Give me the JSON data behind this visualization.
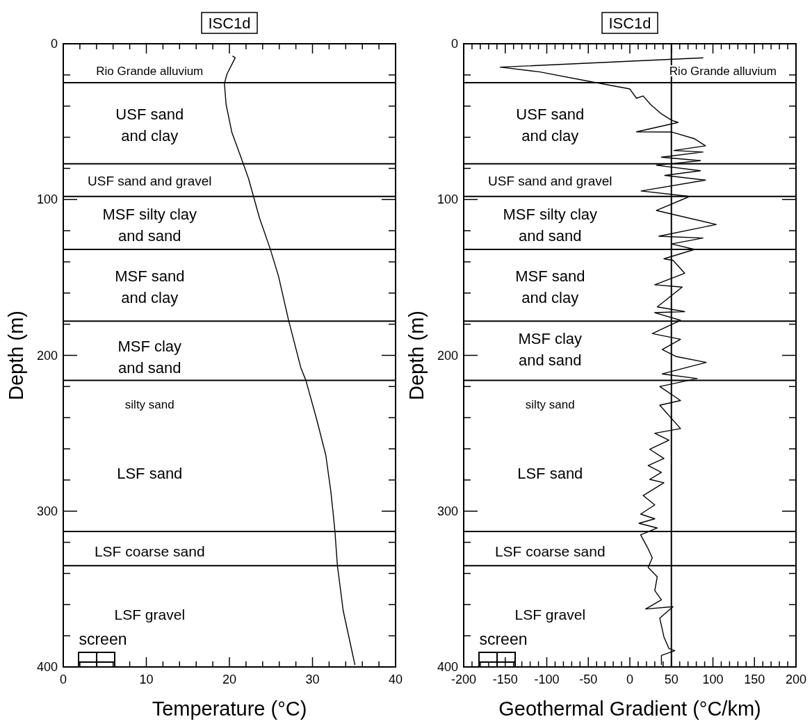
{
  "chart_data": [
    {
      "type": "line",
      "title": "ISC1d",
      "xlabel": "Temperature (°C)",
      "ylabel": "Depth (m)",
      "xlim": [
        0,
        40
      ],
      "ylim": [
        400,
        0
      ],
      "xticks": [
        0,
        {
          "value": 2,
          "label": null
        },
        {
          "value": 4,
          "label": null
        },
        {
          "value": 6,
          "label": null
        },
        {
          "value": 8,
          "label": null
        },
        10,
        {
          "value": 12,
          "label": null
        },
        {
          "value": 14,
          "label": null
        },
        {
          "value": 16,
          "label": null
        },
        {
          "value": 18,
          "label": null
        },
        20,
        {
          "value": 22,
          "label": null
        },
        {
          "value": 24,
          "label": null
        },
        {
          "value": 26,
          "label": null
        },
        {
          "value": 28,
          "label": null
        },
        30,
        {
          "value": 32,
          "label": null
        },
        {
          "value": 34,
          "label": null
        },
        {
          "value": 36,
          "label": null
        },
        {
          "value": 38,
          "label": null
        },
        40
      ],
      "yticks": [
        0,
        {
          "value": 20,
          "label": null
        },
        {
          "value": 40,
          "label": null
        },
        {
          "value": 60,
          "label": null
        },
        {
          "value": 80,
          "label": null
        },
        100,
        {
          "value": 120,
          "label": null
        },
        {
          "value": 140,
          "label": null
        },
        {
          "value": 160,
          "label": null
        },
        {
          "value": 180,
          "label": null
        },
        200,
        {
          "value": 220,
          "label": null
        },
        {
          "value": 240,
          "label": null
        },
        {
          "value": 260,
          "label": null
        },
        {
          "value": 280,
          "label": null
        },
        300,
        {
          "value": 320,
          "label": null
        },
        {
          "value": 340,
          "label": null
        },
        {
          "value": 360,
          "label": null
        },
        {
          "value": 380,
          "label": null
        },
        400
      ],
      "grid": false,
      "marker": "none",
      "line_style": "solid",
      "series": [
        {
          "color": "#000000",
          "x": [
            20.4,
            20.7,
            19.7,
            19.4,
            19.6,
            20.3,
            21.4,
            22.3,
            22.9,
            23.6,
            24.9,
            25.9,
            27.1,
            28.6,
            29.2,
            30.5,
            31.6,
            32.2,
            32.5,
            32.7,
            33.0,
            33.7,
            35.1
          ],
          "values": [
            8,
            9,
            19.5,
            25.5,
            39,
            57,
            73,
            86.5,
            98,
            111.5,
            131.5,
            149,
            177,
            208,
            216,
            241,
            264,
            287,
            302,
            313,
            335,
            364,
            398.5
          ]
        }
      ],
      "ref_lines": [
        {
          "axis": "y",
          "value": 25
        },
        {
          "axis": "y",
          "value": 77
        },
        {
          "axis": "y",
          "value": 98
        },
        {
          "axis": "y",
          "value": 132
        },
        {
          "axis": "y",
          "value": 178
        },
        {
          "axis": "y",
          "value": 216
        },
        {
          "axis": "y",
          "value": 313
        },
        {
          "axis": "y",
          "value": 335
        }
      ],
      "annotations": [
        "Rio Grande alluvium",
        "USF sand\nand clay",
        "USF sand and gravel",
        "MSF silty clay\nand sand",
        "MSF sand\nand clay",
        "MSF clay\nand sand",
        "silty sand",
        "LSF sand",
        "LSF coarse sand",
        "LSF gravel",
        "screen"
      ]
    },
    {
      "type": "line",
      "title": "ISC1d",
      "xlabel": "Geothermal Gradient (°C/km)",
      "ylabel": "Depth (m)",
      "xlim": [
        -200,
        200
      ],
      "ylim": [
        400,
        0
      ],
      "xticks": [
        -200,
        {
          "value": -190,
          "label": null
        },
        {
          "value": -180,
          "label": null
        },
        {
          "value": -170,
          "label": null
        },
        {
          "value": -160,
          "label": null
        },
        -150,
        {
          "value": -140,
          "label": null
        },
        {
          "value": -130,
          "label": null
        },
        {
          "value": -120,
          "label": null
        },
        {
          "value": -110,
          "label": null
        },
        -100,
        {
          "value": -90,
          "label": null
        },
        {
          "value": -80,
          "label": null
        },
        {
          "value": -70,
          "label": null
        },
        {
          "value": -60,
          "label": null
        },
        -50,
        {
          "value": -40,
          "label": null
        },
        {
          "value": -30,
          "label": null
        },
        {
          "value": -20,
          "label": null
        },
        {
          "value": -10,
          "label": null
        },
        0,
        {
          "value": 10,
          "label": null
        },
        {
          "value": 20,
          "label": null
        },
        {
          "value": 30,
          "label": null
        },
        {
          "value": 40,
          "label": null
        },
        50,
        {
          "value": 60,
          "label": null
        },
        {
          "value": 70,
          "label": null
        },
        {
          "value": 80,
          "label": null
        },
        {
          "value": 90,
          "label": null
        },
        100,
        {
          "value": 110,
          "label": null
        },
        {
          "value": 120,
          "label": null
        },
        {
          "value": 130,
          "label": null
        },
        {
          "value": 140,
          "label": null
        },
        150,
        {
          "value": 160,
          "label": null
        },
        {
          "value": 170,
          "label": null
        },
        {
          "value": 180,
          "label": null
        },
        {
          "value": 190,
          "label": null
        },
        200
      ],
      "yticks": [
        0,
        {
          "value": 20,
          "label": null
        },
        {
          "value": 40,
          "label": null
        },
        {
          "value": 60,
          "label": null
        },
        {
          "value": 80,
          "label": null
        },
        100,
        {
          "value": 120,
          "label": null
        },
        {
          "value": 140,
          "label": null
        },
        {
          "value": 160,
          "label": null
        },
        {
          "value": 180,
          "label": null
        },
        200,
        {
          "value": 220,
          "label": null
        },
        {
          "value": 240,
          "label": null
        },
        {
          "value": 260,
          "label": null
        },
        {
          "value": 280,
          "label": null
        },
        300,
        {
          "value": 320,
          "label": null
        },
        {
          "value": 340,
          "label": null
        },
        {
          "value": 360,
          "label": null
        },
        {
          "value": 380,
          "label": null
        },
        400
      ],
      "grid": false,
      "marker": "none",
      "line_style": "solid",
      "series": [
        {
          "color": "#000000",
          "x": [
            88,
            -156,
            -109,
            -45,
            0,
            8,
            16,
            25,
            38,
            50,
            58,
            8,
            50,
            78,
            91,
            53,
            88,
            38,
            85,
            32,
            85,
            42,
            91,
            13.5,
            72,
            32,
            104,
            35,
            88,
            50,
            78,
            41,
            52,
            66,
            30,
            63,
            33,
            66,
            30,
            61,
            27,
            61,
            39,
            56,
            92,
            39,
            81,
            36,
            61,
            36,
            61,
            30,
            47,
            24,
            41,
            22,
            38,
            24,
            41,
            16,
            30,
            13,
            30,
            11,
            33,
            13,
            22,
            27,
            22,
            33,
            30,
            38,
            19,
            52,
            36,
            41,
            47,
            54,
            38,
            38
          ],
          "values": [
            9,
            15,
            18,
            24.5,
            29,
            35,
            33.5,
            39,
            45,
            49,
            50.5,
            56.5,
            56.6,
            61,
            65.5,
            68.5,
            69.5,
            72.8,
            75,
            78,
            81.5,
            84.5,
            87.5,
            94.5,
            98,
            107,
            116,
            123.5,
            124.7,
            128.5,
            132,
            138,
            139,
            147.3,
            154.7,
            156.2,
            168.9,
            171.9,
            172.6,
            177.5,
            186,
            189.7,
            196.3,
            200.8,
            204.5,
            211.9,
            214.9,
            220,
            229,
            232,
            247,
            250,
            254.5,
            260.3,
            266.2,
            270.7,
            275.1,
            279.6,
            281.8,
            290,
            296,
            301.9,
            304.9,
            307.8,
            310.8,
            315.2,
            324.1,
            330,
            336.1,
            342.1,
            351,
            356.9,
            362.8,
            361.3,
            368.7,
            380.7,
            388.1,
            389.6,
            392.6,
            398.5
          ]
        }
      ],
      "ref_lines": [
        {
          "axis": "x",
          "value": 50
        },
        {
          "axis": "y",
          "value": 25
        },
        {
          "axis": "y",
          "value": 77
        },
        {
          "axis": "y",
          "value": 98
        },
        {
          "axis": "y",
          "value": 132
        },
        {
          "axis": "y",
          "value": 178
        },
        {
          "axis": "y",
          "value": 216
        },
        {
          "axis": "y",
          "value": 313
        },
        {
          "axis": "y",
          "value": 335
        }
      ],
      "annotations": [
        "Rio Grande alluvium",
        "USF sand\nand clay",
        "USF sand and gravel",
        "MSF silty clay\nand sand",
        "MSF sand\nand clay",
        "MSF clay\nand sand",
        "silty sand",
        "LSF sand",
        "LSF coarse sand",
        "LSF gravel",
        "screen"
      ]
    }
  ]
}
